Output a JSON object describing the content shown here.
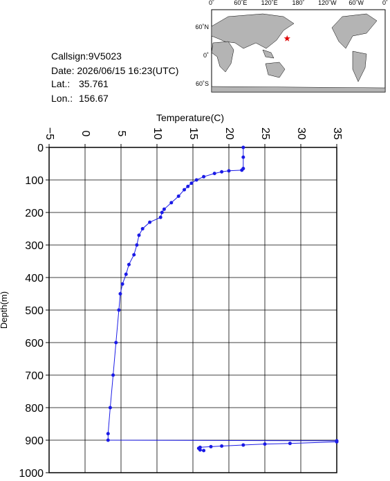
{
  "info": {
    "callsign": "Callsign:9V5023",
    "date": "Date:  2026/06/15 16:23(UTC)",
    "lat_label": "Lat.:",
    "lat": 35.761,
    "lon_label": "Lon.:",
    "lon": 156.67
  },
  "map": {
    "lon_labels": [
      "0˚",
      "60˚E",
      "120˚E",
      "180˚",
      "120˚W",
      "60˚W",
      "0˚"
    ],
    "lat_labels": [
      "60˚N",
      "0˚",
      "60˚S"
    ]
  },
  "chart_data": {
    "type": "line",
    "title": "Temperature(C)",
    "y_label": "Depth(m)",
    "color": "#1a1ae6",
    "grid": true,
    "y_inverted": true,
    "x": [
      22.0,
      22.0,
      22.0,
      21.8,
      20.0,
      19.0,
      18.0,
      16.5,
      15.5,
      14.8,
      14.3,
      13.8,
      13.0,
      12.0,
      11.0,
      10.7,
      10.5,
      9.0,
      8.0,
      7.5,
      7.2,
      6.8,
      6.1,
      5.7,
      5.2,
      4.9,
      4.7,
      4.3,
      3.9,
      3.5,
      3.2,
      3.2,
      35.0,
      35.0,
      28.5,
      25.0,
      22.0,
      19.0,
      17.5,
      16.0,
      15.8,
      16.0,
      16.5
    ],
    "values": [
      0,
      30,
      65,
      70,
      72,
      75,
      80,
      90,
      100,
      110,
      120,
      130,
      150,
      170,
      190,
      200,
      215,
      230,
      250,
      270,
      300,
      330,
      360,
      390,
      420,
      450,
      500,
      600,
      700,
      800,
      880,
      900,
      902,
      905,
      910,
      912,
      915,
      918,
      920,
      922,
      925,
      930,
      932
    ],
    "xlim": [
      -5,
      35
    ],
    "ylim": [
      0,
      1000
    ],
    "xticks": [
      {
        "value": -5,
        "label": "−5"
      },
      0,
      5,
      10,
      15,
      20,
      25,
      30,
      35
    ],
    "yticks": [
      0,
      100,
      200,
      300,
      400,
      500,
      600,
      700,
      800,
      900,
      1000
    ]
  }
}
